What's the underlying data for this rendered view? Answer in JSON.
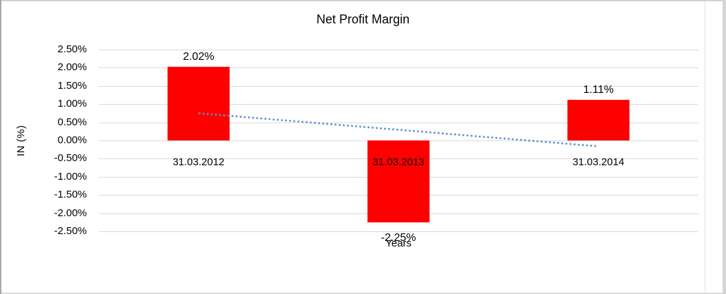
{
  "window": {
    "background": "#ffffff",
    "frame_color": "#c9c9c9"
  },
  "chart_data": {
    "type": "bar",
    "title": "Net Profit Margin",
    "xlabel": "Years",
    "ylabel": "IN (%)",
    "categories": [
      "31.03.2012",
      "31.03.2013",
      "31.03.2014"
    ],
    "series": [
      {
        "name": "Net Profit Margin",
        "values": [
          2.02,
          -2.25,
          1.11
        ]
      }
    ],
    "data_labels": [
      "2.02%",
      "-2.25%",
      "1.11%"
    ],
    "ytick_labels": [
      "2.50%",
      "2.00%",
      "1.50%",
      "1.00%",
      "0.50%",
      "0.00%",
      "-0.50%",
      "-1.00%",
      "-1.50%",
      "-2.00%",
      "-2.50%"
    ],
    "ytick_values": [
      2.5,
      2.0,
      1.5,
      1.0,
      0.5,
      0.0,
      -0.5,
      -1.0,
      -1.5,
      -2.0,
      -2.5
    ],
    "ylim": [
      -2.5,
      2.5
    ],
    "ytick_step": 0.5,
    "grid": true,
    "legend_position": "none",
    "bar_color": "#ff0000",
    "gridline_color": "#d9d9d9",
    "text_color": "#000000",
    "trendline": {
      "type": "linear",
      "style": "dotted",
      "color": "#5b8fd0",
      "start_value_pct": 0.75,
      "end_value_pct": -0.16
    }
  }
}
